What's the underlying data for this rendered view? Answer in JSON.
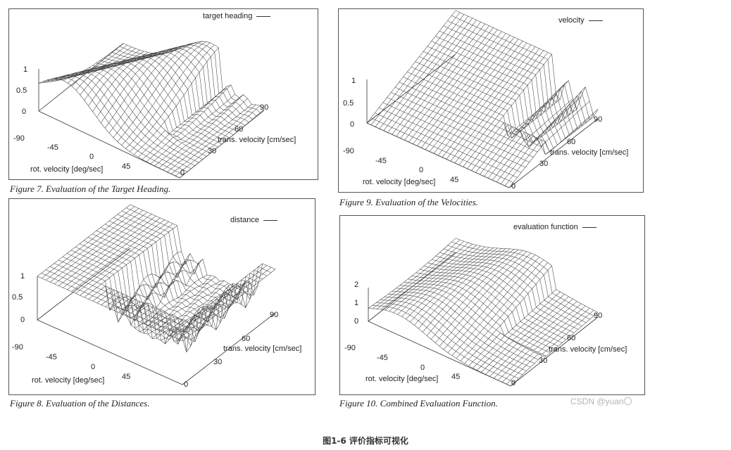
{
  "panels": [
    {
      "legend": "target heading",
      "caption": "Figure 7. Evaluation of the Target Heading.",
      "z_ticks": [
        "1",
        "0.5",
        "0"
      ],
      "rot_ticks": [
        "-90",
        "-45",
        "0",
        "45"
      ],
      "trans_ticks": [
        "0",
        "30",
        "60",
        "90"
      ],
      "rot_label": "rot. velocity [deg/sec]",
      "trans_label": "trans. velocity [cm/sec]"
    },
    {
      "legend": "velocity",
      "caption": "Figure 9. Evaluation of the Velocities.",
      "z_ticks": [
        "1",
        "0.5",
        "0"
      ],
      "rot_ticks": [
        "-90",
        "-45",
        "0",
        "45"
      ],
      "trans_ticks": [
        "0",
        "30",
        "60",
        "90"
      ],
      "rot_label": "rot. velocity [deg/sec]",
      "trans_label": "trans. velocity [cm/sec]"
    },
    {
      "legend": "distance",
      "caption": "Figure 8. Evaluation of the Distances.",
      "z_ticks": [
        "1",
        "0.5",
        "0"
      ],
      "rot_ticks": [
        "-90",
        "-45",
        "0",
        "45"
      ],
      "trans_ticks": [
        "0",
        "30",
        "60",
        "90"
      ],
      "rot_label": "rot. velocity [deg/sec]",
      "trans_label": "trans. velocity [cm/sec]"
    },
    {
      "legend": "evaluation function",
      "caption": "Figure 10. Combined Evaluation Function.",
      "z_ticks": [
        "2",
        "1",
        "0"
      ],
      "rot_ticks": [
        "-90",
        "-45",
        "0",
        "45"
      ],
      "trans_ticks": [
        "0",
        "30",
        "60",
        "90"
      ],
      "rot_label": "rot. velocity [deg/sec]",
      "trans_label": "trans. velocity [cm/sec]"
    }
  ],
  "watermark": "CSDN @yuan〇",
  "figure_title": "图1-6 评价指标可视化"
}
